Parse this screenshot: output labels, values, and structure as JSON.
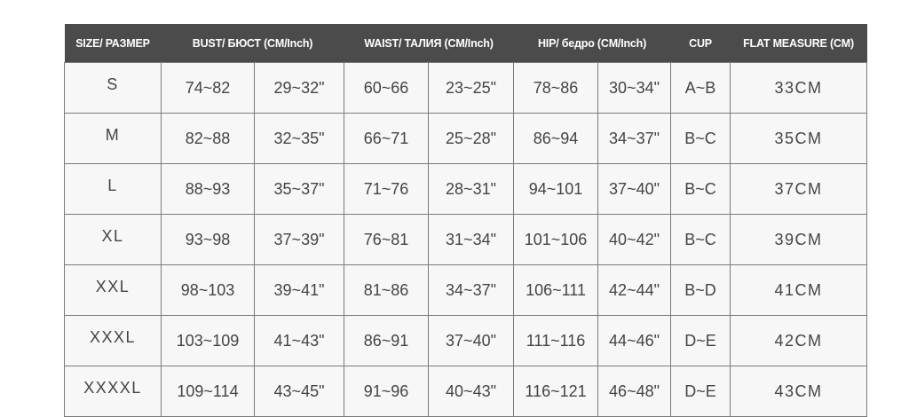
{
  "headers": [
    "SIZE/ РАЗМЕР",
    "BUST/ БЮСТ (CM/Inch)",
    "WAIST/ ТАЛИЯ (CM/Inch)",
    "HIP/ бедро (CM/Inch)",
    "CUP",
    "FLAT MEASURE (CM)"
  ],
  "rows": [
    [
      "S",
      "74~82",
      "29~32\"",
      "60~66",
      "23~25\"",
      "78~86",
      "30~34\"",
      "A~B",
      "33CM"
    ],
    [
      "M",
      "82~88",
      "32~35\"",
      "66~71",
      "25~28\"",
      "86~94",
      "34~37\"",
      "B~C",
      "35CM"
    ],
    [
      "L",
      "88~93",
      "35~37\"",
      "71~76",
      "28~31\"",
      "94~101",
      "37~40\"",
      "B~C",
      "37CM"
    ],
    [
      "XL",
      "93~98",
      "37~39\"",
      "76~81",
      "31~34\"",
      "101~106",
      "40~42\"",
      "B~C",
      "39CM"
    ],
    [
      "XXL",
      "98~103",
      "39~41\"",
      "81~86",
      "34~37\"",
      "106~111",
      "42~44\"",
      "B~D",
      "41CM"
    ],
    [
      "XXXL",
      "103~109",
      "41~43\"",
      "86~91",
      "37~40\"",
      "111~116",
      "44~46\"",
      "D~E",
      "42CM"
    ],
    [
      "XXXXL",
      "109~114",
      "43~45\"",
      "91~96",
      "40~43\"",
      "116~121",
      "46~48\"",
      "D~E",
      "43CM"
    ]
  ],
  "colors": {
    "header_bg": "#4b4b4b",
    "header_text": "#ffffff",
    "cell_bg": "#f7f7f7",
    "cell_text": "#444444",
    "border": "#7a7a7a"
  }
}
